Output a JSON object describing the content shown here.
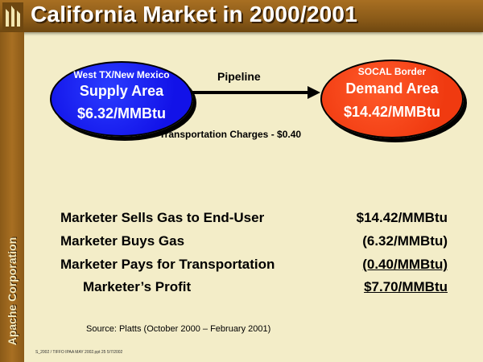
{
  "slide": {
    "title": "California Market in 2000/2001",
    "vertical_label": "Apache Corporation"
  },
  "supply": {
    "region": "West TX/New Mexico",
    "area": "Supply Area",
    "price": "$6.32/MMBtu",
    "color": "#1212e8"
  },
  "demand": {
    "region": "SOCAL Border",
    "area": "Demand Area",
    "price": "$14.42/MMBtu",
    "color": "#f03a10"
  },
  "pipeline_label": "Pipeline",
  "transportation_charges": "Transportation Charges - $0.40",
  "breakdown": [
    {
      "label": "Marketer Sells Gas to End-User",
      "value": "$14.42/MMBtu"
    },
    {
      "label": "Marketer Buys Gas",
      "value": "(6.32/MMBtu)"
    },
    {
      "label": "Marketer Pays for Transportation",
      "value": "(0.40/MMBtu)"
    },
    {
      "label": "Marketer’s Profit",
      "value": "$7.70/MMBtu"
    }
  ],
  "source": "Source: Platts (October 2000 – February 2001)",
  "footer": "S_2002 / TIFFO IPAA MAY 2002.ppt 25 5/7/2002",
  "colors": {
    "title_bar": "#8a5a18",
    "background": "#f3edc8"
  }
}
